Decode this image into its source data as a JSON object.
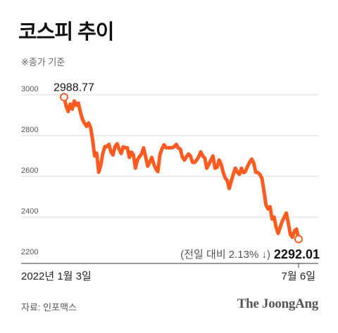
{
  "header": {
    "title": "코스피 추이",
    "subtitle": "※종가 기준"
  },
  "footer": {
    "source": "자료: 인포맥스",
    "brand": "The JoongAng"
  },
  "colors": {
    "series": "#ff5a1f",
    "grid": "#d9d9d9",
    "axis_text": "#555555",
    "marker_fill": "#ffffff"
  },
  "chart_data": {
    "type": "line",
    "title": "코스피 추이",
    "ylim": [
      2200,
      3000
    ],
    "yticks": [
      2200,
      2400,
      2600,
      2800,
      3000
    ],
    "grid": true,
    "x_labels": {
      "start": "2022년 1월 3일",
      "end": "7월 6일"
    },
    "annotations": {
      "start_value": "2988.77",
      "end_change": "(전일 대비 2.13% ↓)",
      "end_value": "2292.01"
    },
    "series": [
      {
        "values": [
          2988.77,
          2945,
          2918,
          2955,
          2930,
          2970,
          2948,
          2960,
          2915,
          2880,
          2860,
          2845,
          2862,
          2840,
          2780,
          2700,
          2714,
          2620,
          2655,
          2712,
          2746,
          2746,
          2757,
          2720,
          2705,
          2746,
          2760,
          2733,
          2712,
          2745,
          2740,
          2740,
          2693,
          2719,
          2705,
          2640,
          2680,
          2697,
          2710,
          2740,
          2696,
          2650,
          2670,
          2693,
          2660,
          2637,
          2623,
          2706,
          2735,
          2755,
          2740,
          2740,
          2741,
          2740,
          2746,
          2757,
          2739,
          2733,
          2695,
          2680,
          2695,
          2710,
          2700,
          2669,
          2668,
          2680,
          2695,
          2720,
          2700,
          2690,
          2640,
          2660,
          2680,
          2700,
          2640,
          2644,
          2680,
          2660,
          2620,
          2592,
          2580,
          2540,
          2577,
          2610,
          2640,
          2620,
          2610,
          2640,
          2618,
          2625,
          2650,
          2669,
          2685,
          2665,
          2620,
          2619,
          2610,
          2590,
          2530,
          2460,
          2440,
          2451,
          2390,
          2400,
          2350,
          2320,
          2350,
          2380,
          2400,
          2420,
          2371,
          2314,
          2301,
          2332,
          2341,
          2292.01
        ]
      }
    ]
  }
}
